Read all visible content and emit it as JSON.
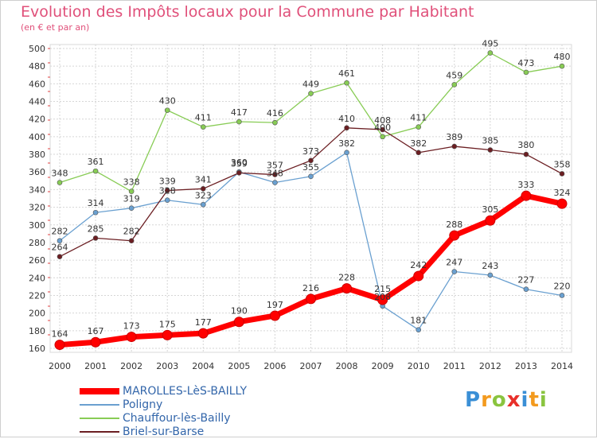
{
  "chart_data": {
    "type": "line",
    "title": "Evolution des Impôts locaux pour la Commune par Habitant",
    "subtitle": "(en € et par an)",
    "x": [
      "2000",
      "2001",
      "2002",
      "2003",
      "2004",
      "2005",
      "2006",
      "2007",
      "2008",
      "2009",
      "2010",
      "2011",
      "2012",
      "2013",
      "2014"
    ],
    "ylim": [
      160,
      500
    ],
    "yticks": [
      160,
      180,
      200,
      220,
      240,
      260,
      280,
      300,
      320,
      340,
      360,
      380,
      400,
      420,
      440,
      460,
      480,
      500
    ],
    "grid": true,
    "legend_position": "bottom-left",
    "series": [
      {
        "name": "MAROLLES-LèS-BAILLY",
        "color": "#ff0000",
        "values": [
          164,
          167,
          173,
          175,
          177,
          190,
          197,
          216,
          228,
          215,
          242,
          288,
          305,
          333,
          324
        ]
      },
      {
        "name": "Poligny",
        "color": "#6aa0d0",
        "values": [
          282,
          314,
          319,
          328,
          323,
          360,
          348,
          355,
          382,
          208,
          181,
          247,
          243,
          227,
          220
        ]
      },
      {
        "name": "Chauffour-lès-Bailly",
        "color": "#88cc55",
        "values": [
          348,
          361,
          338,
          430,
          411,
          417,
          416,
          449,
          461,
          400,
          411,
          459,
          495,
          473,
          480
        ]
      },
      {
        "name": "Briel-sur-Barse",
        "color": "#6b1e22",
        "values": [
          264,
          285,
          282,
          339,
          341,
          359,
          357,
          373,
          410,
          408,
          382,
          389,
          385,
          380,
          358
        ]
      }
    ]
  },
  "branding": {
    "logo_letters": [
      "P",
      "r",
      "o",
      "x",
      "i",
      "t",
      "i"
    ],
    "logo_colors": [
      "#3a8fd6",
      "#f39a1e",
      "#8ac43f",
      "#e8302a",
      "#3a8fd6",
      "#f39a1e",
      "#8ac43f"
    ]
  }
}
